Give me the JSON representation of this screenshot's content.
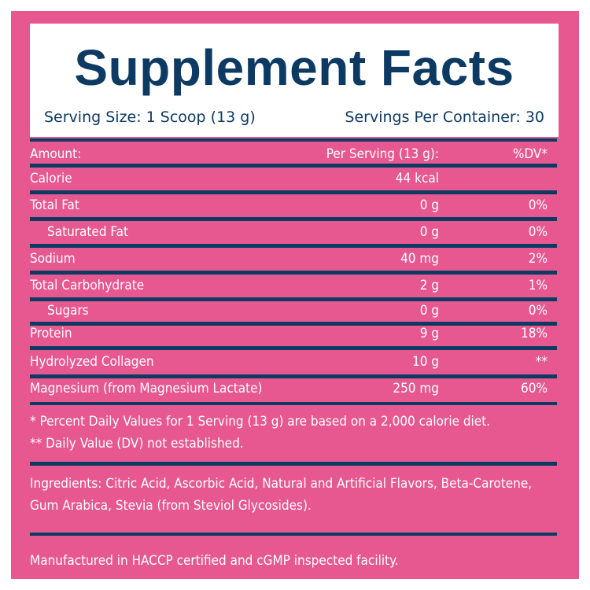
{
  "panel": {
    "background": "#e6588f",
    "accent": "#0d3a63"
  },
  "title": "Supplement Facts",
  "serving_size": "Serving Size: 1 Scoop (13 g)",
  "servings_per_container": "Servings Per Container: 30",
  "table_header": {
    "name": "Amount:",
    "amount": "Per Serving (13 g):",
    "dv": "%DV*"
  },
  "rows": [
    {
      "name": "Calorie",
      "amount": "44 kcal",
      "dv": ""
    },
    {
      "name": "Total Fat",
      "amount": "0 g",
      "dv": "0%"
    },
    {
      "name": "Saturated Fat",
      "amount": "0 g",
      "dv": "0%"
    },
    {
      "name": "Sodium",
      "amount": "40 mg",
      "dv": "2%"
    },
    {
      "name": "Total Carbohydrate",
      "amount": "2 g",
      "dv": "1%"
    },
    {
      "name": "Sugars",
      "amount": "0 g",
      "dv": "0%"
    },
    {
      "name": "Protein",
      "amount": "9 g",
      "dv": "18%"
    },
    {
      "name": "Hydrolyzed Collagen",
      "amount": "10 g",
      "dv": "**"
    },
    {
      "name": "Magnesium (from Magnesium Lactate)",
      "amount": "250 mg",
      "dv": "60%"
    }
  ],
  "footnotes": [
    "* Percent Daily Values for 1 Serving (13 g) are based on a 2,000 calorie diet.",
    "** Daily Value (DV) not established."
  ],
  "ingredients": "Ingredients: Citric Acid, Ascorbic Acid, Natural and Artificial Flavors, Beta-Carotene, Gum Arabica, Stevia (from Steviol Glycosides).",
  "manufactured": "Manufactured in HACCP certified and cGMP inspected facility."
}
